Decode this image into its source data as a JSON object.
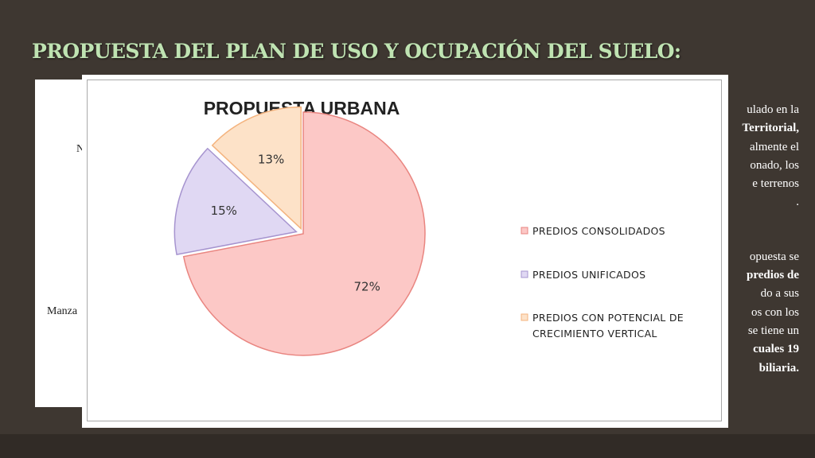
{
  "slide": {
    "title": "PROPUESTA DEL PLAN DE USO Y OCUPACIÓN DEL SUELO:",
    "card_fragments": [
      "N",
      "Manza"
    ],
    "right_lines": [
      "ulado en la",
      "Territorial,",
      "almente el",
      "onado, los",
      "e terrenos",
      ".",
      "",
      "opuesta se",
      "predios de",
      "do a sus",
      "os con los",
      "se tiene un",
      "cuales 19",
      "biliaria."
    ]
  },
  "chart_data": {
    "type": "pie",
    "title": "PROPUESTA URBANA",
    "start_angle_deg": 0,
    "slices": [
      {
        "label": "PREDIOS CONSOLIDADOS",
        "value": 72,
        "display": "72%",
        "fill": "#fcc8c6",
        "stroke": "#e98580"
      },
      {
        "label": "PREDIOS UNIFICADOS",
        "value": 15,
        "display": "15%",
        "fill": "#e0d8f3",
        "stroke": "#a694cf"
      },
      {
        "label": "PREDIOS CON POTENCIAL DE CRECIMIENTO VERTICAL",
        "value": 13,
        "display": "13%",
        "fill": "#fde2c8",
        "stroke": "#f4b37e"
      }
    ],
    "legend": {
      "placement": "right",
      "lines": [
        [
          "PREDIOS CONSOLIDADOS"
        ],
        [
          "PREDIOS UNIFICADOS"
        ],
        [
          "PREDIOS CON POTENCIAL DE",
          "CRECIMIENTO VERTICAL"
        ]
      ]
    }
  }
}
